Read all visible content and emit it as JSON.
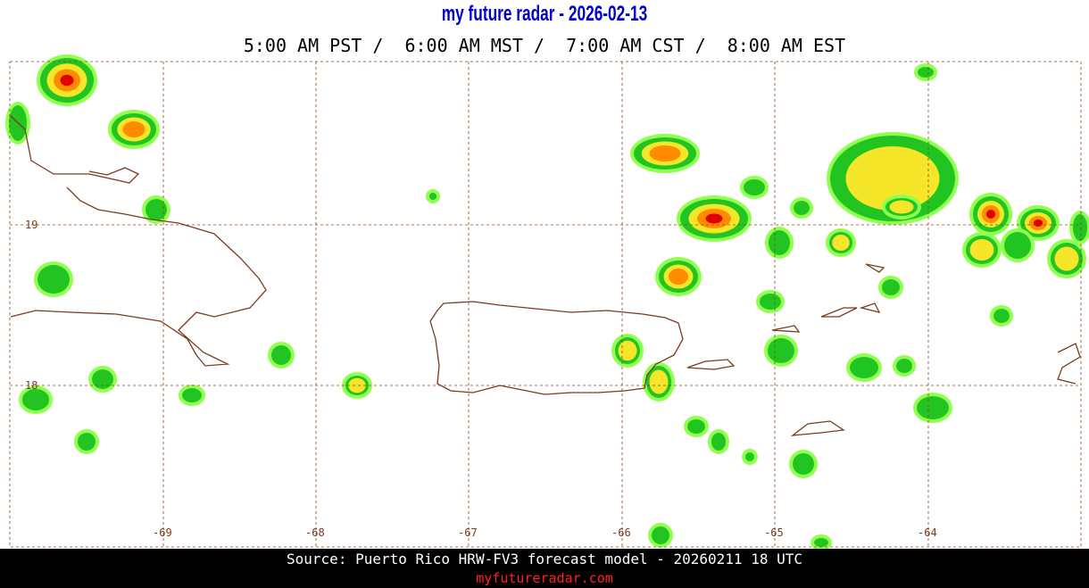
{
  "header": {
    "title": "my future radar - 2026-02-13",
    "times": "5:00 AM PST /  6:00 AM MST /  7:00 AM CST /  8:00 AM EST"
  },
  "map": {
    "lon_labels": [
      "-69",
      "-68",
      "-67",
      "-66",
      "-65",
      "-64"
    ],
    "lat_labels": [
      "19",
      "18"
    ]
  },
  "footer": {
    "source": "Source: Puerto Rico HRW-FV3 forecast model - 20260211 18 UTC",
    "site": "myfutureradar.com"
  }
}
